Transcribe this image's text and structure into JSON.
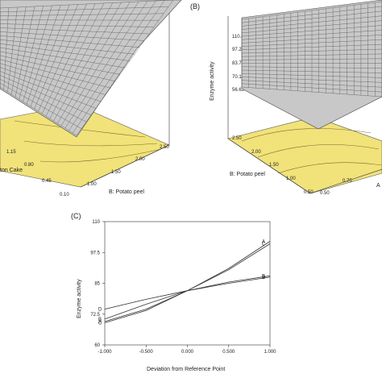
{
  "figure": {
    "panel_labels": [
      "(B)",
      "(C)"
    ]
  },
  "chart_data": [
    {
      "panel": "A",
      "type": "surface",
      "title": "",
      "x_axis": {
        "label": "B: Potato peel",
        "ticks": [
          "1.00",
          "1.50",
          "2.00",
          "2.50"
        ]
      },
      "y_axis": {
        "label": "ton Cake",
        "ticks": [
          "0.10",
          "0.45",
          "0.80",
          "1.15"
        ]
      },
      "colors": {
        "surface": "#c8c8c8",
        "mesh": "#555555",
        "floor": "#f1e27a"
      }
    },
    {
      "panel": "B",
      "type": "surface",
      "title": "(B)",
      "z_axis": {
        "label": "Enzyme activity",
        "ticks": [
          "110.811",
          "97.2671",
          "83.7229",
          "70.1788",
          "56.6346"
        ]
      },
      "x_axis": {
        "label": "B: Potato peel",
        "ticks": [
          "2.50",
          "2.00",
          "1.50",
          "1.00",
          "0.50"
        ]
      },
      "y_axis": {
        "label": "A",
        "ticks": [
          "0.75",
          "0.50"
        ]
      },
      "colors": {
        "surface": "#c8c8c8",
        "mesh": "#555555",
        "floor": "#f1e27a"
      }
    },
    {
      "panel": "C",
      "type": "line",
      "title": "(C)",
      "xlabel": "Deviation from Reference Point",
      "ylabel": "Enzyme activity",
      "xlim": [
        -1.0,
        1.0
      ],
      "ylim": [
        60,
        110
      ],
      "x_ticks": [
        "-1.000",
        "-0.500",
        "0.000",
        "0.500",
        "1.000"
      ],
      "y_ticks": [
        "60",
        "72.5",
        "85",
        "97.5",
        "110"
      ],
      "series": [
        {
          "name": "A",
          "x": [
            -1.0,
            -0.5,
            0.0,
            0.5,
            1.0
          ],
          "y": [
            69.5,
            74.5,
            82.0,
            91.0,
            102.0
          ]
        },
        {
          "name": "B",
          "x": [
            -1.0,
            -0.5,
            0.0,
            0.5,
            1.0
          ],
          "y": [
            70.5,
            76.5,
            82.0,
            85.5,
            88.0
          ]
        },
        {
          "name": "C",
          "x": [
            -1.0,
            -0.5,
            0.0,
            0.5,
            1.0
          ],
          "y": [
            69.0,
            74.0,
            82.0,
            90.5,
            101.0
          ]
        },
        {
          "name": "D",
          "x": [
            -1.0,
            -0.5,
            0.0,
            0.5,
            1.0
          ],
          "y": [
            74.5,
            78.5,
            82.0,
            85.0,
            87.5
          ]
        }
      ]
    }
  ]
}
